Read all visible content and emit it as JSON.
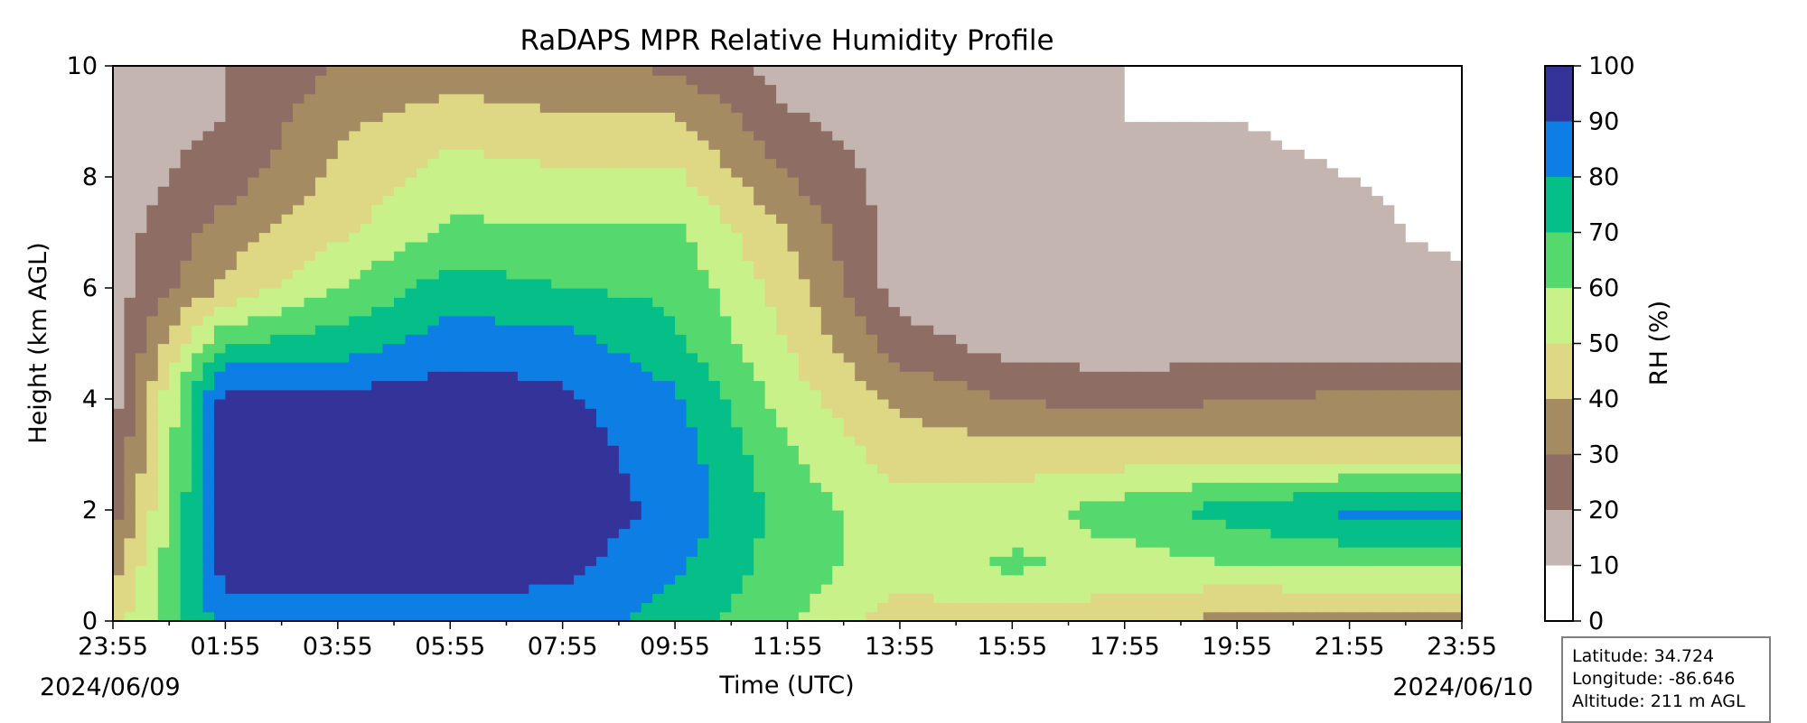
{
  "chart_data": {
    "type": "heatmap",
    "title": "RaDAPS MPR Relative Humidity Profile",
    "xlabel": "Time (UTC)",
    "ylabel": "Height (km AGL)",
    "x_tick_labels": [
      "23:55",
      "01:55",
      "03:55",
      "05:55",
      "07:55",
      "09:55",
      "11:55",
      "13:55",
      "15:55",
      "17:55",
      "19:55",
      "21:55",
      "23:55"
    ],
    "x_start_date": "2024/06/09",
    "x_end_date": "2024/06/10",
    "ylim": [
      0,
      10
    ],
    "y_ticks": [
      0,
      2,
      4,
      6,
      8,
      10
    ],
    "colorbar": {
      "label": "RH (%)",
      "levels": [
        0,
        10,
        20,
        30,
        40,
        50,
        60,
        70,
        80,
        90,
        100
      ],
      "colors": [
        "#ffffff",
        "#c4b5b1",
        "#8e6e64",
        "#a48b62",
        "#ded783",
        "#c8f18a",
        "#55d96e",
        "#05be88",
        "#0d7fe4",
        "#333399"
      ]
    },
    "times": [
      "23:55",
      "01:55",
      "03:55",
      "05:55",
      "07:55",
      "09:55",
      "11:55",
      "13:55",
      "15:55",
      "17:55",
      "19:55",
      "21:55",
      "23:55"
    ],
    "heights": [
      0,
      1,
      2,
      3,
      4,
      5,
      6,
      7,
      8,
      9,
      10
    ],
    "z": [
      [
        45,
        35,
        25,
        20,
        15,
        15,
        15,
        15,
        15,
        15,
        15
      ],
      [
        85,
        94,
        95,
        95,
        95,
        70,
        42,
        35,
        25,
        20,
        20
      ],
      [
        85,
        95,
        96,
        96,
        93,
        75,
        60,
        48,
        42,
        38,
        30
      ],
      [
        85,
        95,
        96,
        96,
        96,
        85,
        75,
        62,
        55,
        45,
        35
      ],
      [
        85,
        93,
        95,
        95,
        92,
        85,
        70,
        62,
        52,
        42,
        32
      ],
      [
        75,
        82,
        88,
        85,
        82,
        72,
        68,
        62,
        52,
        42,
        28
      ],
      [
        62,
        65,
        65,
        62,
        55,
        50,
        45,
        40,
        30,
        22,
        15
      ],
      [
        45,
        55,
        55,
        45,
        38,
        25,
        15,
        15,
        15,
        15,
        10
      ],
      [
        45,
        62,
        55,
        45,
        30,
        15,
        15,
        15,
        15,
        15,
        10
      ],
      [
        45,
        55,
        65,
        45,
        25,
        15,
        15,
        15,
        15,
        10,
        10
      ],
      [
        35,
        60,
        75,
        45,
        30,
        15,
        15,
        15,
        15,
        10,
        5
      ],
      [
        35,
        62,
        82,
        45,
        32,
        15,
        15,
        15,
        10,
        5,
        5
      ],
      [
        35,
        62,
        82,
        45,
        32,
        15,
        15,
        5,
        5,
        5,
        5
      ]
    ]
  },
  "info_box": {
    "latitude_label": "Latitude:",
    "latitude_value": "34.724",
    "longitude_label": "Longitude:",
    "longitude_value": "-86.646",
    "altitude_label": "Altitude:",
    "altitude_value": "211 m AGL"
  }
}
